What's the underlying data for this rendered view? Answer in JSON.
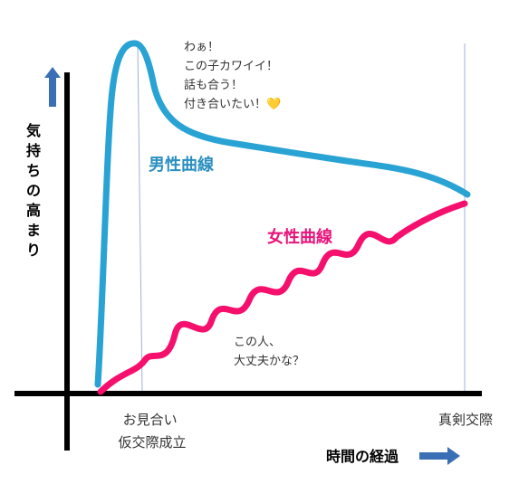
{
  "chart_data": {
    "type": "line",
    "y_axis_label": "気持ちの高まり",
    "x_axis_label": "時間の経過",
    "ticks": [
      {
        "lines": [
          "お見合い",
          "仮交際成立"
        ]
      },
      {
        "lines": [
          "真剣交際"
        ]
      }
    ],
    "series": [
      {
        "name": "男性曲線",
        "color": "#29a3d3",
        "annotation": [
          "わぁ！",
          "この子カワイイ！",
          "話も合う！",
          "付き合いたい！💛"
        ]
      },
      {
        "name": "女性曲線",
        "color": "#f5106e",
        "annotation": [
          "この人、",
          "大丈夫かな？"
        ]
      }
    ],
    "axis_arrow_color": "#3a6fb5",
    "grid": false
  }
}
